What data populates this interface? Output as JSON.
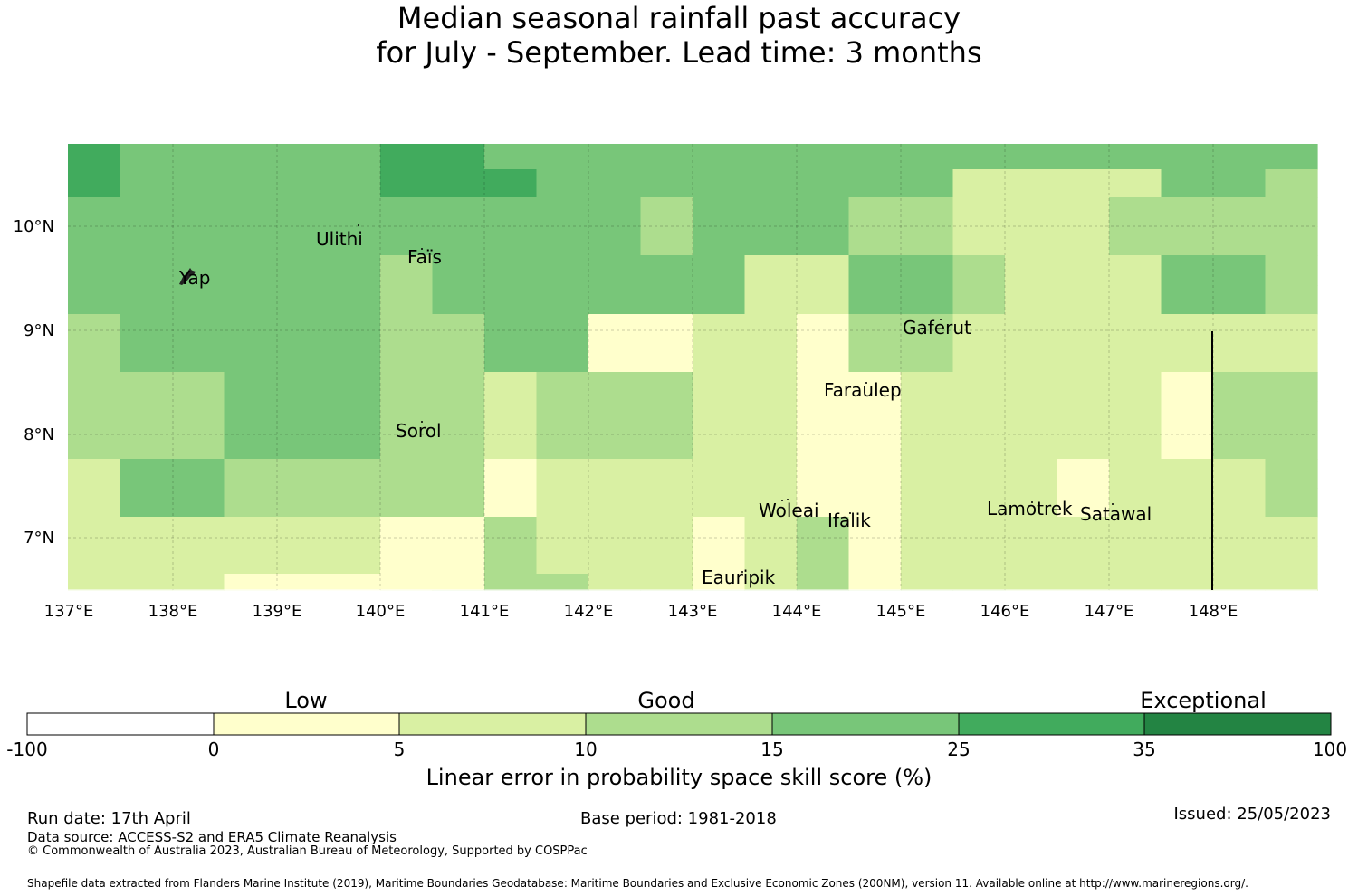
{
  "title": {
    "line1": "Median seasonal rainfall past accuracy",
    "line2": "for July - September. Lead time: 3 months"
  },
  "map": {
    "lat_labels": [
      "10°N",
      "9°N",
      "8°N",
      "7°N"
    ],
    "lon_labels": [
      "137°E",
      "138°E",
      "139°E",
      "140°E",
      "141°E",
      "142°E",
      "143°E",
      "144°E",
      "145°E",
      "146°E",
      "147°E",
      "148°E"
    ],
    "place_labels": [
      "Ulithi",
      "Faïs",
      "Yap",
      "Gaferut",
      "Faraulep",
      "Sorol",
      "Woleai",
      "Ifalik",
      "Lamotrek",
      "Satawal",
      "Eauripik"
    ],
    "class_colors": [
      "#ffffff",
      "#ffffcc",
      "#d9f0a3",
      "#addd8e",
      "#78c679",
      "#41ab5d",
      "#238443"
    ],
    "grid_rows_north_to_south": [
      "544444554444444444444444",
      "544444555444444442222443",
      "444444444443444332223333",
      "444444444443444332223333",
      "444444344444422443222443",
      "444444344444422443222443",
      "344444334411221332222222",
      "344444334411221332222222",
      "333444332333221122222133",
      "333444332333221122222133",
      "333444332333221122222133",
      "244333331222221122212223",
      "244333331222221122212223",
      "222222113222123122222222",
      "222222113222123122222222",
      "222111113322123122222222",
      "222211233333333333222222"
    ]
  },
  "legend": {
    "categories": [
      "Low",
      "Good",
      "Exceptional"
    ],
    "ticks": [
      "-100",
      "0",
      "5",
      "10",
      "15",
      "25",
      "35",
      "100"
    ],
    "colors": [
      "#ffffff",
      "#ffffcc",
      "#d9f0a3",
      "#addd8e",
      "#78c679",
      "#41ab5d",
      "#238443"
    ],
    "label": "Linear error in probability space skill score (%)"
  },
  "footer": {
    "run_date": "Run date: 17th April",
    "base_period": "Base period: 1981-2018",
    "issued": "Issued: 25/05/2023",
    "data_source": "Data source: ACCESS-S2 and ERA5 Climate Reanalysis",
    "copyright": "© Commonwealth of Australia 2023, Australian Bureau of Meteorology, Supported by COSPPac",
    "shapefile": "Shapefile data extracted from Flanders Marine Institute (2019), Maritime Boundaries Geodatabase: Maritime Boundaries and Exclusive Economic Zones (200NM), version 11. Available online at http://www.marineregions.org/."
  }
}
